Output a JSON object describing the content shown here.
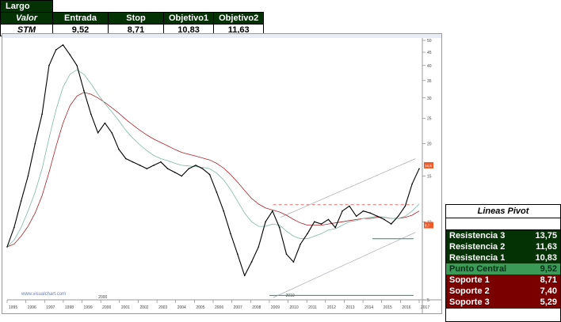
{
  "header": {
    "title": "Largo",
    "columns": [
      "Valor",
      "Entrada",
      "Stop",
      "Objetivo1",
      "Objetivo2"
    ],
    "row": [
      "STM",
      "9,52",
      "8,71",
      "10,83",
      "11,63"
    ]
  },
  "chart_data": {
    "type": "line",
    "series": [
      {
        "values": [
          8,
          9.5,
          12,
          15,
          20,
          26,
          40,
          46,
          48,
          44,
          40,
          32,
          26,
          22,
          24,
          22,
          19,
          17.5,
          17,
          16.5,
          16,
          16.5,
          17,
          16,
          15.5,
          15,
          16,
          16.5,
          16,
          15.2,
          13,
          11,
          9,
          7.5,
          6.2,
          7,
          8,
          10,
          11,
          9.5,
          7.5,
          7,
          8.2,
          9,
          10,
          9.8,
          10.2,
          9.5,
          11,
          11.5,
          10.5,
          11,
          10.8,
          10.5,
          10.2,
          9.8,
          10.5,
          11.5,
          14,
          16
        ]
      },
      {
        "values": [
          8,
          8.5,
          9.5,
          11,
          13,
          16,
          21,
          27,
          33,
          37,
          38.5,
          37,
          34,
          31,
          28.5,
          26.5,
          24.5,
          22.5,
          21,
          19.8,
          18.8,
          18,
          17.5,
          17.2,
          16.8,
          16.5,
          16.4,
          16.3,
          16.2,
          16,
          15.4,
          14.5,
          13.3,
          12,
          10.8,
          10,
          9.6,
          9.6,
          9.8,
          9.7,
          9.2,
          8.8,
          8.6,
          8.6,
          8.8,
          9,
          9.3,
          9.4,
          9.7,
          10,
          10.1,
          10.3,
          10.4,
          10.5,
          10.4,
          10.3,
          10.3,
          10.5,
          11,
          11.7
        ]
      },
      {
        "values": [
          8,
          8.2,
          8.8,
          9.6,
          10.8,
          12.6,
          15.5,
          19.5,
          24,
          28,
          30.5,
          31.5,
          31,
          30,
          28.8,
          27.5,
          26.2,
          24.8,
          23.6,
          22.5,
          21.6,
          20.8,
          20.2,
          19.6,
          19,
          18.5,
          18.2,
          17.9,
          17.6,
          17.3,
          16.8,
          16.1,
          15.2,
          14.2,
          13.2,
          12.3,
          11.7,
          11.3,
          11.1,
          10.9,
          10.6,
          10.2,
          9.9,
          9.7,
          9.7,
          9.7,
          9.8,
          9.9,
          10,
          10.1,
          10.2,
          10.3,
          10.3,
          10.4,
          10.4,
          10.3,
          10.3,
          10.4,
          10.6,
          11
        ]
      }
    ],
    "x_start": 1995,
    "x_end": 2017,
    "y_min": 5,
    "y_max": 50,
    "y_scale": "log",
    "x_ticks": [
      "1995",
      "1996",
      "1997",
      "1998",
      "1999",
      "2000",
      "2001",
      "2002",
      "2003",
      "2004",
      "2005",
      "2006",
      "2007",
      "2008",
      "2009",
      "2010",
      "2011",
      "2012",
      "2013",
      "2014",
      "2015",
      "2016",
      "2017"
    ],
    "y_ticks": [
      "50",
      "45",
      "40",
      "35",
      "30",
      "25",
      "20",
      "15",
      "10",
      "5"
    ],
    "lines": {
      "target_dashed": 11.63,
      "support_level": 8.6,
      "low_level": 5.2
    },
    "price_tags": [
      "16,5",
      "9,7"
    ],
    "colors": {
      "price": "#000000",
      "ma_short": "#7fb8a8",
      "ma_long": "#b0202a",
      "target": "#e07070",
      "support": "#2a8a6a",
      "tag": "#f05a28"
    },
    "watermark": "www.visualchart.com",
    "year_note": "2000",
    "year_note_2": "2010"
  },
  "pivot": {
    "title": "Lineas Pivot",
    "rows": [
      {
        "kind": "res",
        "label": "Resistencia 3",
        "value": "13,75"
      },
      {
        "kind": "res",
        "label": "Resistencia 2",
        "value": "11,63"
      },
      {
        "kind": "res",
        "label": "Resistencia 1",
        "value": "10,83"
      },
      {
        "kind": "piv",
        "label": "Punto Central",
        "value": "9,52"
      },
      {
        "kind": "sup",
        "label": "Soporte 1",
        "value": "8,71"
      },
      {
        "kind": "sup",
        "label": "Soporte 2",
        "value": "7,40"
      },
      {
        "kind": "sup",
        "label": "Soporte 3",
        "value": "5,29"
      }
    ]
  }
}
